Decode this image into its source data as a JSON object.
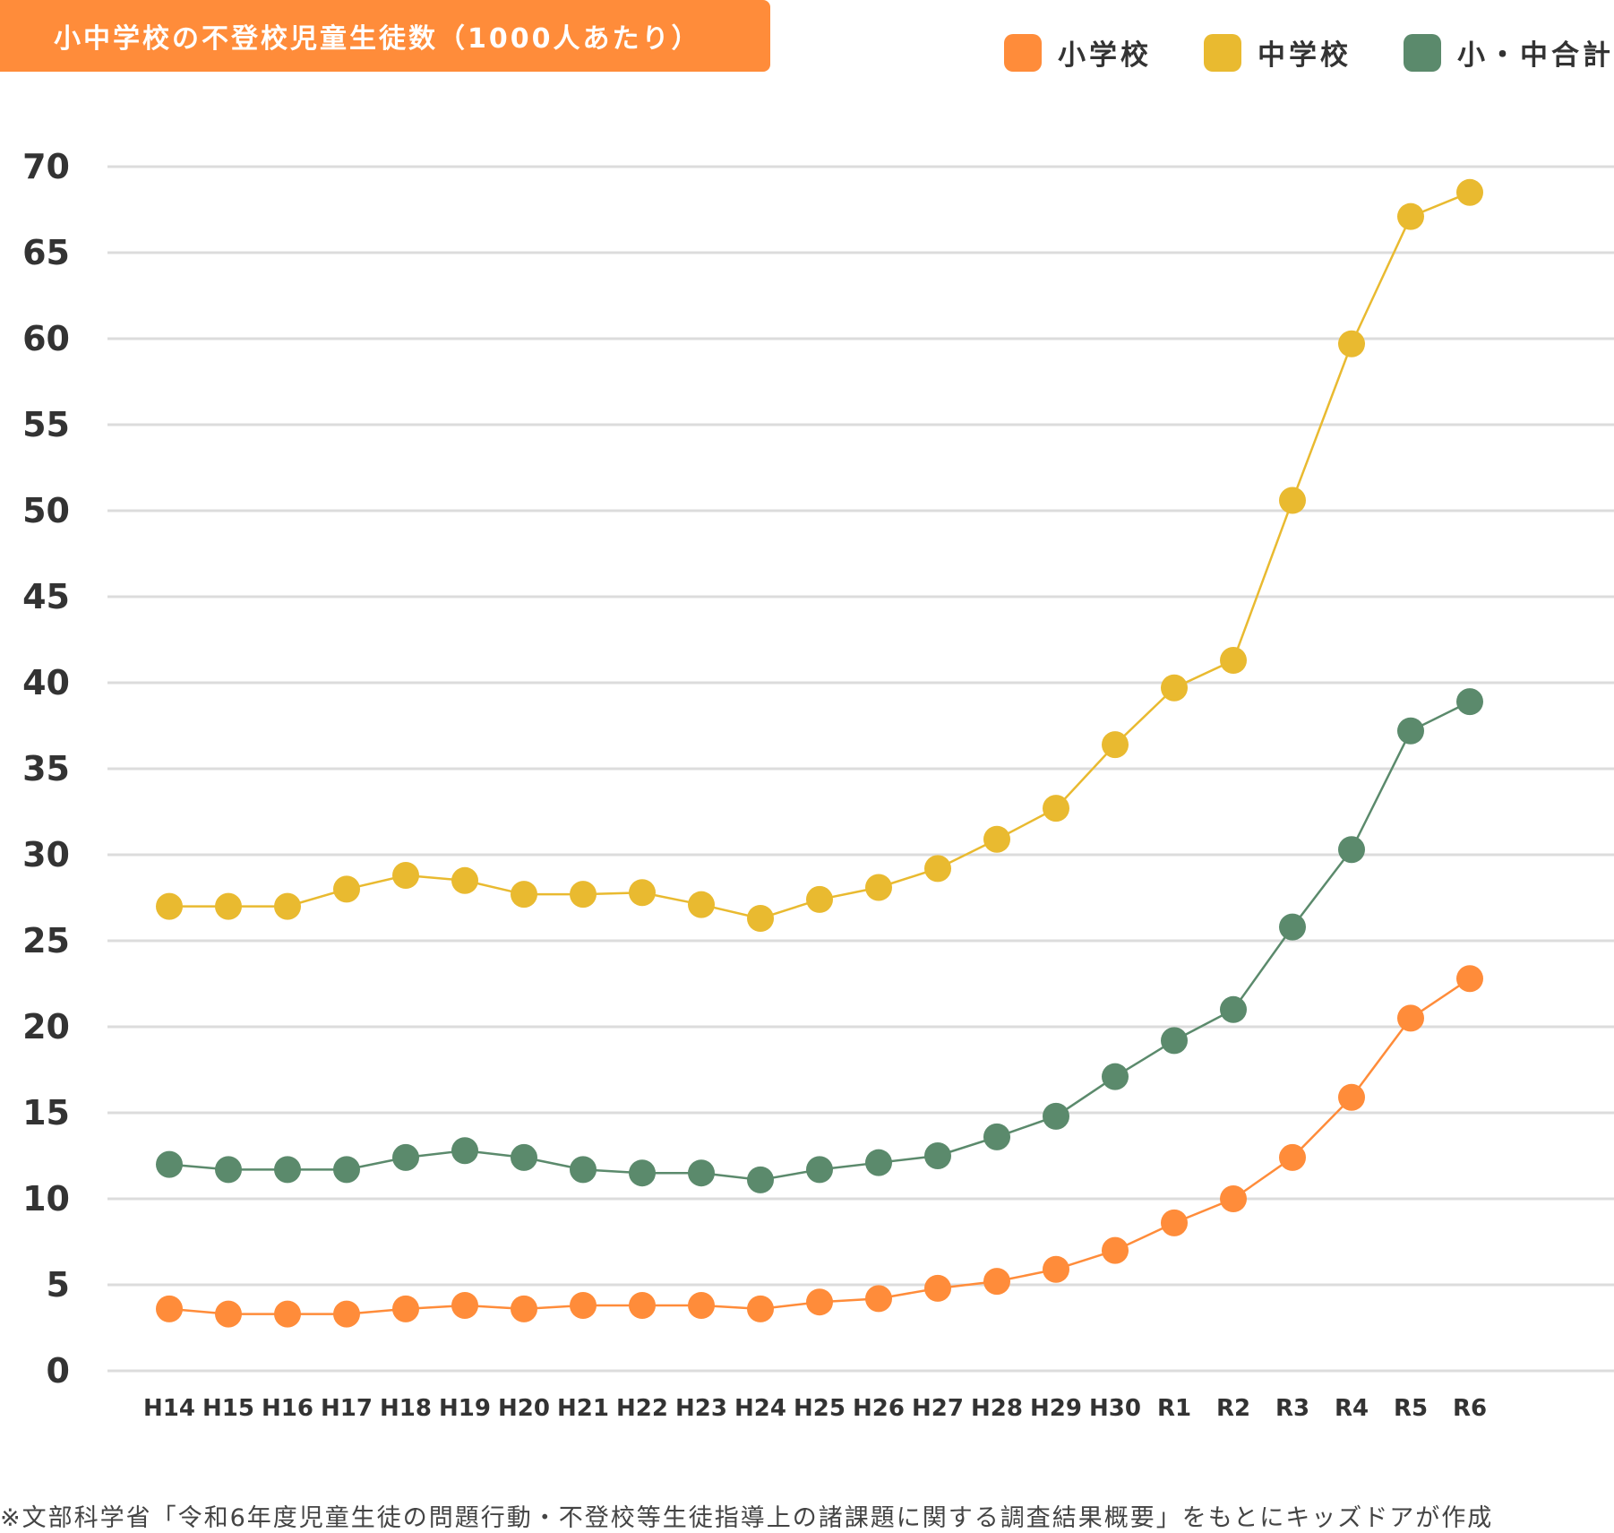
{
  "chart_data": {
    "type": "line",
    "title": "小中学校の不登校児童生徒数（1000人あたり）",
    "categories": [
      "H14",
      "H15",
      "H16",
      "H17",
      "H18",
      "H19",
      "H20",
      "H21",
      "H22",
      "H23",
      "H24",
      "H25",
      "H26",
      "H27",
      "H28",
      "H29",
      "H30",
      "R1",
      "R2",
      "R3",
      "R4",
      "R5",
      "R6"
    ],
    "series": [
      {
        "name": "小学校",
        "color": "#FF8C3A",
        "values": [
          3.6,
          3.3,
          3.3,
          3.3,
          3.6,
          3.8,
          3.6,
          3.8,
          3.8,
          3.8,
          3.6,
          4.0,
          4.2,
          4.8,
          5.2,
          5.9,
          7.0,
          8.6,
          10.0,
          12.4,
          15.9,
          20.5,
          22.8
        ]
      },
      {
        "name": "中学校",
        "color": "#E9BA30",
        "values": [
          27.0,
          27.0,
          27.0,
          28.0,
          28.8,
          28.5,
          27.7,
          27.7,
          27.8,
          27.1,
          26.3,
          27.4,
          28.1,
          29.2,
          30.9,
          32.7,
          36.4,
          39.7,
          41.3,
          50.6,
          59.7,
          67.1,
          68.5
        ]
      },
      {
        "name": "小・中合計",
        "color": "#5B8A6C",
        "values": [
          12.0,
          11.7,
          11.7,
          11.7,
          12.4,
          12.8,
          12.4,
          11.7,
          11.5,
          11.5,
          11.1,
          11.7,
          12.1,
          12.5,
          13.6,
          14.8,
          17.1,
          19.2,
          21.0,
          25.8,
          30.3,
          37.2,
          38.9
        ]
      }
    ],
    "yticks": [
      0,
      5,
      10,
      15,
      20,
      25,
      30,
      35,
      40,
      45,
      50,
      55,
      60,
      65,
      70
    ],
    "ylim": [
      0,
      70
    ],
    "grid": true,
    "legend": "top-right",
    "xlabel": "",
    "ylabel": ""
  },
  "footer": {
    "source_note": "※文部科学省「令和6年度児童生徒の問題行動・不登校等生徒指導上の諸課題に関する調査結果概要」をもとにキッズドアが作成"
  }
}
